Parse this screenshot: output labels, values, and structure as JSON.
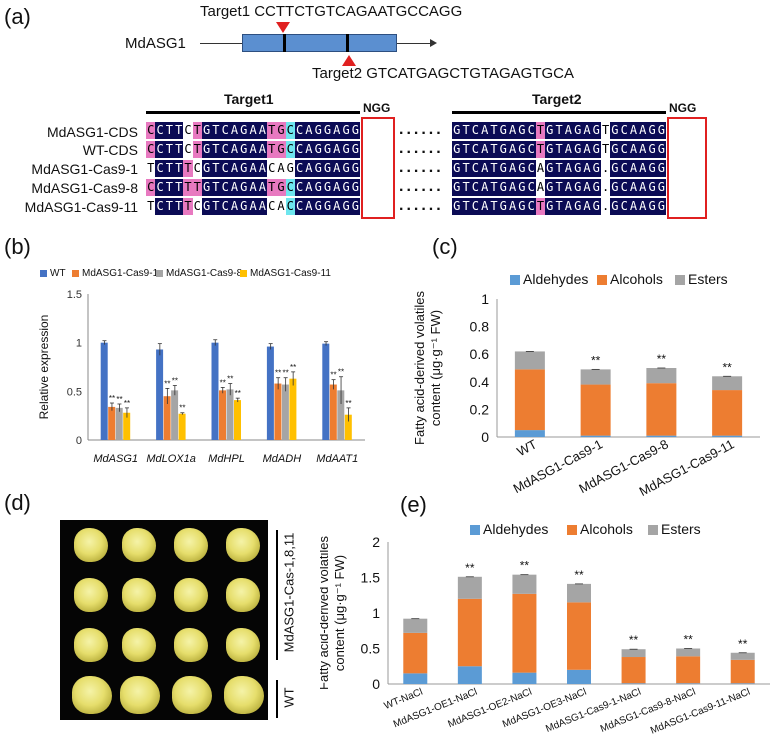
{
  "panel_a": {
    "label": "(a)",
    "gene_name": "MdASG1",
    "target1_label": "Target1",
    "target1_seq": "CCTTCTGTCAGAATGCCAGG",
    "target2_label": "Target2",
    "target2_seq": "GTCATGAGCTGTAGAGTGCA",
    "header_target1": "Target1",
    "header_target2": "Target2",
    "ngg1": "NGG",
    "ngg2": "NGG",
    "dots": "......",
    "rows": [
      {
        "name": "MdASG1-CDS",
        "left": "CCTTCTGTCAGAATGCCAGGAGG",
        "right": "GTCATGAGCTGTAGAGTGCAAGG"
      },
      {
        "name": "WT-CDS",
        "left": "CCTTCTGTCAGAATGCCAGGAGG",
        "right": "GTCATGAGCTGTAGAGTGCAAGG"
      },
      {
        "name": "MdASG1-Cas9-1",
        "left": "TCTTTCGTCAGAACAGCAGGAGG",
        "right": "GTCATGAGCAGTAGAG.GCAAGG"
      },
      {
        "name": "MdASG1-Cas9-8",
        "left": "CCTTTTGTCAGAATGCCAGGAGG",
        "right": "GTCATGAGCAGTAGAG.GCAAGG"
      },
      {
        "name": "MdASG1-Cas9-11",
        "left": "TCTTTCGTCAGAACACCAGGAGG",
        "right": "GTCATGAGCTGTAGAG.GCAAGG"
      }
    ],
    "colors": {
      "navy": "#0b0b55",
      "cyan": "#6ee6ee",
      "pink": "#e879c0",
      "white": "#ffffff",
      "red": "#e02020",
      "gene_bar": "#5b8fd0"
    }
  },
  "panel_b": {
    "label": "(b)",
    "sig": "**",
    "chart_data": {
      "type": "bar",
      "ylabel": "Relative expression",
      "ylim": [
        0,
        1.5
      ],
      "yticks": [
        "0",
        "0.5",
        "1",
        "1.5"
      ],
      "categories": [
        "MdASG1",
        "MdLOX1a",
        "MdHPL",
        "MdADH",
        "MdAAT1"
      ],
      "series": [
        {
          "name": "WT",
          "color": "#4472c4",
          "values": [
            1.0,
            0.93,
            1.0,
            0.96,
            0.99
          ],
          "errors": [
            0.02,
            0.06,
            0.03,
            0.03,
            0.02
          ]
        },
        {
          "name": "MdASG1-Cas9-1",
          "color": "#ed7d31",
          "values": [
            0.34,
            0.45,
            0.51,
            0.58,
            0.57
          ],
          "errors": [
            0.04,
            0.08,
            0.03,
            0.06,
            0.05
          ]
        },
        {
          "name": "MdASG1-Cas9-8",
          "color": "#a5a5a5",
          "values": [
            0.33,
            0.51,
            0.52,
            0.57,
            0.51
          ],
          "errors": [
            0.04,
            0.05,
            0.06,
            0.07,
            0.14
          ]
        },
        {
          "name": "MdASG1-Cas9-11",
          "color": "#ffc000",
          "values": [
            0.28,
            0.27,
            0.41,
            0.63,
            0.26
          ],
          "errors": [
            0.05,
            0.01,
            0.02,
            0.07,
            0.07
          ]
        }
      ]
    }
  },
  "panel_c": {
    "label": "(c)",
    "sig": "**",
    "chart_data": {
      "type": "bar",
      "stacked": true,
      "ylabel_line1": "Fatty acid-derived volatiles",
      "ylabel_line2": "content (μg·g⁻¹ FW)",
      "ylim": [
        0,
        1
      ],
      "yticks": [
        "0",
        "0.2",
        "0.4",
        "0.6",
        "0.8",
        "1"
      ],
      "categories": [
        "WT",
        "MdASG1-Cas9-1",
        "MdASG1-Cas9-8",
        "MdASG1-Cas9-11"
      ],
      "series": [
        {
          "name": "Aldehydes",
          "color": "#5b9bd5",
          "values": [
            0.05,
            0.01,
            0.01,
            0.01
          ]
        },
        {
          "name": "Alcohols",
          "color": "#ed7d31",
          "values": [
            0.44,
            0.37,
            0.38,
            0.33
          ]
        },
        {
          "name": "Esters",
          "color": "#a5a5a5",
          "values": [
            0.13,
            0.11,
            0.11,
            0.1
          ]
        }
      ],
      "alcohol_errors": [
        0.06,
        0.005,
        0.005,
        0.005
      ]
    }
  },
  "panel_d": {
    "label": "(d)",
    "side_label_top": "MdASG1-Cas-1,8,11",
    "side_label_bottom": "WT"
  },
  "panel_e": {
    "label": "(e)",
    "sig": "**",
    "chart_data": {
      "type": "bar",
      "stacked": true,
      "ylabel_line1": "Fatty acid-derived volatiles",
      "ylabel_line2": "content (μg·g⁻¹ FW)",
      "ylim": [
        0,
        2
      ],
      "yticks": [
        "0",
        "0.5",
        "1",
        "1.5",
        "2"
      ],
      "categories": [
        "WT-NaCl",
        "MdASG1-OE1-NaCl",
        "MdASG1-OE2-NaCl",
        "MdASG1-OE3-NaCl",
        "MdASG1-Cas9-1-NaCl",
        "MdASG1-Cas9-8-NaCl",
        "MdASG1-Cas9-11-NaCl"
      ],
      "series": [
        {
          "name": "Aldehydes",
          "color": "#5b9bd5",
          "values": [
            0.15,
            0.25,
            0.16,
            0.2,
            0.01,
            0.01,
            0.01
          ]
        },
        {
          "name": "Alcohols",
          "color": "#ed7d31",
          "values": [
            0.57,
            0.95,
            1.11,
            0.95,
            0.37,
            0.38,
            0.33
          ]
        },
        {
          "name": "Esters",
          "color": "#a5a5a5",
          "values": [
            0.2,
            0.31,
            0.27,
            0.26,
            0.11,
            0.11,
            0.1
          ]
        }
      ],
      "significant": [
        false,
        true,
        true,
        true,
        true,
        true,
        true
      ]
    }
  }
}
